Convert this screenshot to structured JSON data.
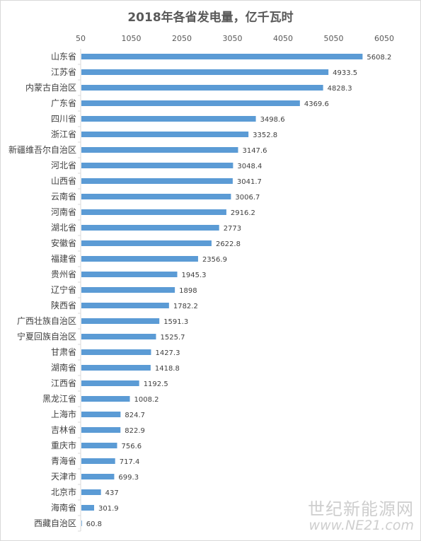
{
  "chart_data": {
    "type": "bar",
    "orientation": "horizontal",
    "title": "2018年各省发电量，亿千瓦时",
    "xaxis_position": "top",
    "xlim": [
      50,
      6050
    ],
    "xticks": [
      50,
      1050,
      2050,
      3050,
      4050,
      5050,
      6050
    ],
    "bar_color": "#5b9bd5",
    "grid": false,
    "categories": [
      "山东省",
      "江苏省",
      "内蒙古自治区",
      "广东省",
      "四川省",
      "浙江省",
      "新疆维吾尔自治区",
      "河北省",
      "山西省",
      "云南省",
      "河南省",
      "湖北省",
      "安徽省",
      "福建省",
      "贵州省",
      "辽宁省",
      "陕西省",
      "广西壮族自治区",
      "宁夏回族自治区",
      "甘肃省",
      "湖南省",
      "江西省",
      "黑龙江省",
      "上海市",
      "吉林省",
      "重庆市",
      "青海省",
      "天津市",
      "北京市",
      "海南省",
      "西藏自治区"
    ],
    "values": [
      5608.2,
      4933.5,
      4828.3,
      4369.6,
      3498.6,
      3352.8,
      3147.6,
      3048.4,
      3041.7,
      3006.7,
      2916.2,
      2773,
      2622.8,
      2356.9,
      1945.3,
      1898,
      1782.2,
      1591.3,
      1525.7,
      1427.3,
      1418.8,
      1192.5,
      1008.2,
      824.7,
      822.9,
      756.6,
      717.4,
      699.3,
      437,
      301.9,
      60.8
    ]
  },
  "watermark": {
    "text": "世纪新能源网",
    "url": "www.NE21.com"
  }
}
